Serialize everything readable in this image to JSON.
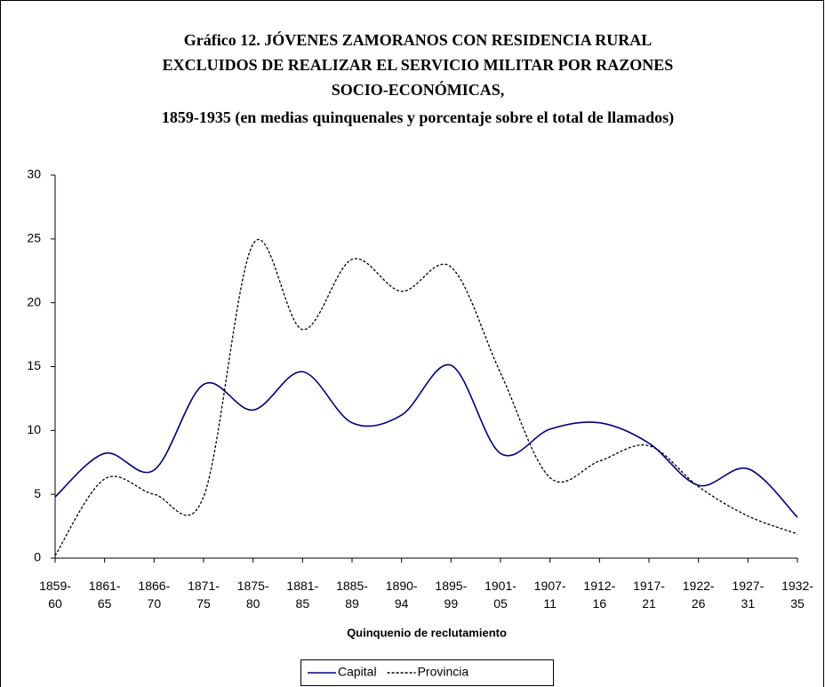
{
  "chart_data": {
    "type": "line",
    "title": [
      "Gráfico 12. JÓVENES ZAMORANOS CON RESIDENCIA RURAL",
      "EXCLUIDOS DE REALIZAR EL SERVICIO MILITAR POR RAZONES",
      "SOCIO-ECONÓMICAS,",
      "1859-1935  (en medias quinquenales y porcentaje sobre el total de llamados)"
    ],
    "x_label": "Quinquenio de reclutamiento",
    "categories": [
      "1859-60",
      "1861-65",
      "1866-70",
      "1871-75",
      "1875-80",
      "1881-85",
      "1885-89",
      "1890-94",
      "1895-99",
      "1901-05",
      "1907-11",
      "1912-16",
      "1917-21",
      "1922-26",
      "1927-31",
      "1932-35"
    ],
    "series": [
      {
        "name": "Capital",
        "color": "#000080",
        "dashed": false,
        "values": [
          4.8,
          8.2,
          6.9,
          13.6,
          11.6,
          14.6,
          10.6,
          11.2,
          15.1,
          8.2,
          10.1,
          10.6,
          9.0,
          5.7,
          7.0,
          3.2
        ]
      },
      {
        "name": "Provincia",
        "color": "#000000",
        "dashed": true,
        "values": [
          0.2,
          6.2,
          5.0,
          4.8,
          24.6,
          17.9,
          23.4,
          20.9,
          22.8,
          14.5,
          6.3,
          7.6,
          8.8,
          5.6,
          3.3,
          1.9
        ]
      }
    ],
    "ylim": [
      0,
      30
    ],
    "yticks": [
      0,
      5,
      10,
      15,
      20,
      25,
      30
    ],
    "legend": "bottom"
  }
}
